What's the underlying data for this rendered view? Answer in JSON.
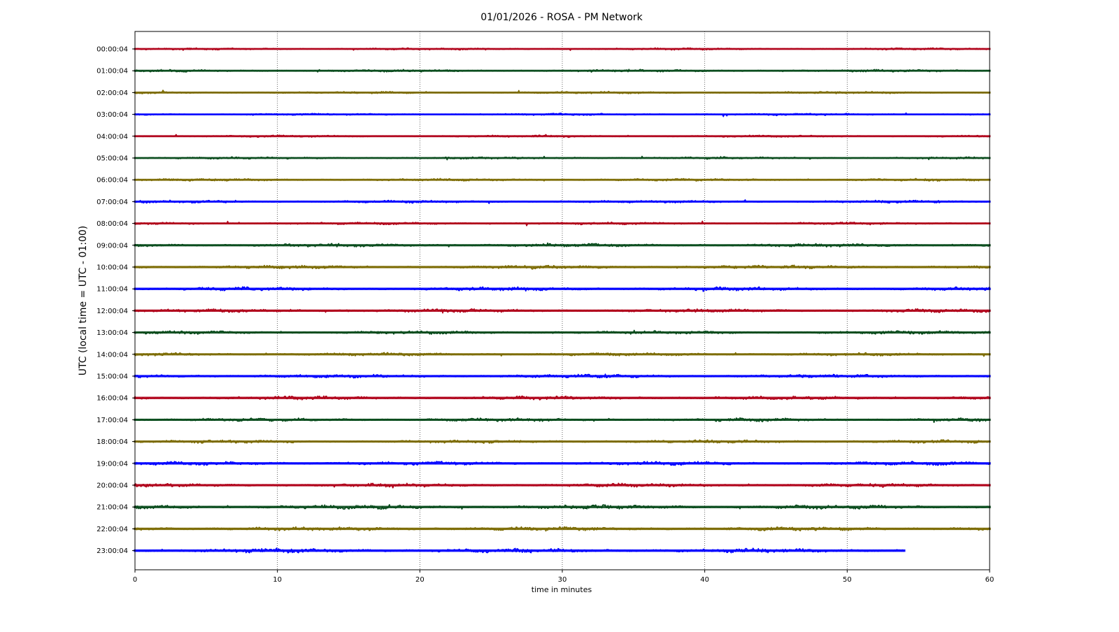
{
  "chart_data": {
    "type": "line",
    "title": "01/01/2026 - ROSA - PM Network",
    "xlabel": "time in minutes",
    "ylabel": "UTC (local time = UTC - 01:00)",
    "xlim": [
      0,
      60
    ],
    "x_ticks": [
      0,
      10,
      20,
      30,
      40,
      50,
      60
    ],
    "grid": "vertical dotted at major x ticks",
    "legend": "none",
    "series": [
      {
        "label": "00:00:04",
        "color": "#b00018",
        "x_end": 60,
        "amplitude": 1.0
      },
      {
        "label": "01:00:04",
        "color": "#064a1a",
        "x_end": 60,
        "amplitude": 1.2
      },
      {
        "label": "02:00:04",
        "color": "#7b6a00",
        "x_end": 60,
        "amplitude": 1.1
      },
      {
        "label": "03:00:04",
        "color": "#0000ff",
        "x_end": 60,
        "amplitude": 1.0
      },
      {
        "label": "04:00:04",
        "color": "#b00018",
        "x_end": 60,
        "amplitude": 1.0
      },
      {
        "label": "05:00:04",
        "color": "#064a1a",
        "x_end": 60,
        "amplitude": 1.1
      },
      {
        "label": "06:00:04",
        "color": "#7b6a00",
        "x_end": 60,
        "amplitude": 1.2
      },
      {
        "label": "07:00:04",
        "color": "#0000ff",
        "x_end": 60,
        "amplitude": 1.3
      },
      {
        "label": "08:00:04",
        "color": "#b00018",
        "x_end": 60,
        "amplitude": 1.2
      },
      {
        "label": "09:00:04",
        "color": "#064a1a",
        "x_end": 60,
        "amplitude": 1.6
      },
      {
        "label": "10:00:04",
        "color": "#7b6a00",
        "x_end": 60,
        "amplitude": 1.7
      },
      {
        "label": "11:00:04",
        "color": "#0000ff",
        "x_end": 60,
        "amplitude": 1.8
      },
      {
        "label": "12:00:04",
        "color": "#b00018",
        "x_end": 60,
        "amplitude": 1.7
      },
      {
        "label": "13:00:04",
        "color": "#064a1a",
        "x_end": 60,
        "amplitude": 1.6
      },
      {
        "label": "14:00:04",
        "color": "#7b6a00",
        "x_end": 60,
        "amplitude": 1.5
      },
      {
        "label": "15:00:04",
        "color": "#0000ff",
        "x_end": 60,
        "amplitude": 1.7
      },
      {
        "label": "16:00:04",
        "color": "#b00018",
        "x_end": 60,
        "amplitude": 1.8
      },
      {
        "label": "17:00:04",
        "color": "#064a1a",
        "x_end": 60,
        "amplitude": 1.6
      },
      {
        "label": "18:00:04",
        "color": "#7b6a00",
        "x_end": 60,
        "amplitude": 1.6
      },
      {
        "label": "19:00:04",
        "color": "#0000ff",
        "x_end": 60,
        "amplitude": 1.8
      },
      {
        "label": "20:00:04",
        "color": "#b00018",
        "x_end": 60,
        "amplitude": 1.7
      },
      {
        "label": "21:00:04",
        "color": "#064a1a",
        "x_end": 60,
        "amplitude": 2.0
      },
      {
        "label": "22:00:04",
        "color": "#7b6a00",
        "x_end": 60,
        "amplitude": 2.0
      },
      {
        "label": "23:00:04",
        "color": "#0000ff",
        "x_end": 54,
        "amplitude": 2.1
      }
    ]
  }
}
